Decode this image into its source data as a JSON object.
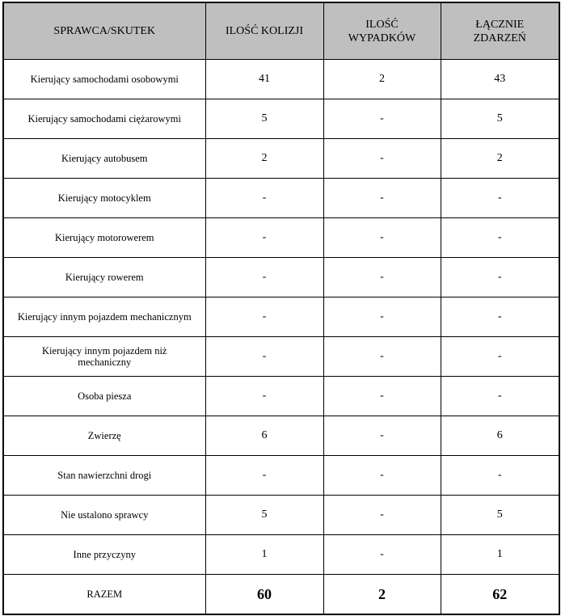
{
  "table": {
    "headers": [
      "SPRAWCA/SKUTEK",
      "ILOŚĆ KOLIZJI",
      "ILOŚĆ WYPADKÓW",
      "ŁĄCZNIE ZDARZEŃ"
    ],
    "rows": [
      [
        "Kierujący samochodami osobowymi",
        "41",
        "2",
        "43"
      ],
      [
        "Kierujący samochodami ciężarowymi",
        "5",
        "-",
        "5"
      ],
      [
        "Kierujący autobusem",
        "2",
        "-",
        "2"
      ],
      [
        "Kierujący motocyklem",
        "-",
        "-",
        "-"
      ],
      [
        "Kierujący motorowerem",
        "-",
        "-",
        "-"
      ],
      [
        "Kierujący rowerem",
        "-",
        "-",
        "-"
      ],
      [
        "Kierujący innym pojazdem mechanicznym",
        "-",
        "-",
        "-"
      ],
      [
        "Kierujący innym pojazdem niż mechaniczny",
        "-",
        "-",
        "-"
      ],
      [
        "Osoba piesza",
        "-",
        "-",
        "-"
      ],
      [
        "Zwierzę",
        "6",
        "-",
        "6"
      ],
      [
        "Stan nawierzchni drogi",
        "-",
        "-",
        "-"
      ],
      [
        "Nie ustalono sprawcy",
        "5",
        "-",
        "5"
      ],
      [
        "Inne przyczyny",
        "1",
        "-",
        "1"
      ]
    ],
    "total": [
      "RAZEM",
      "60",
      "2",
      "62"
    ]
  },
  "colors": {
    "header_bg": "#bfbfbf",
    "border": "#000000"
  }
}
